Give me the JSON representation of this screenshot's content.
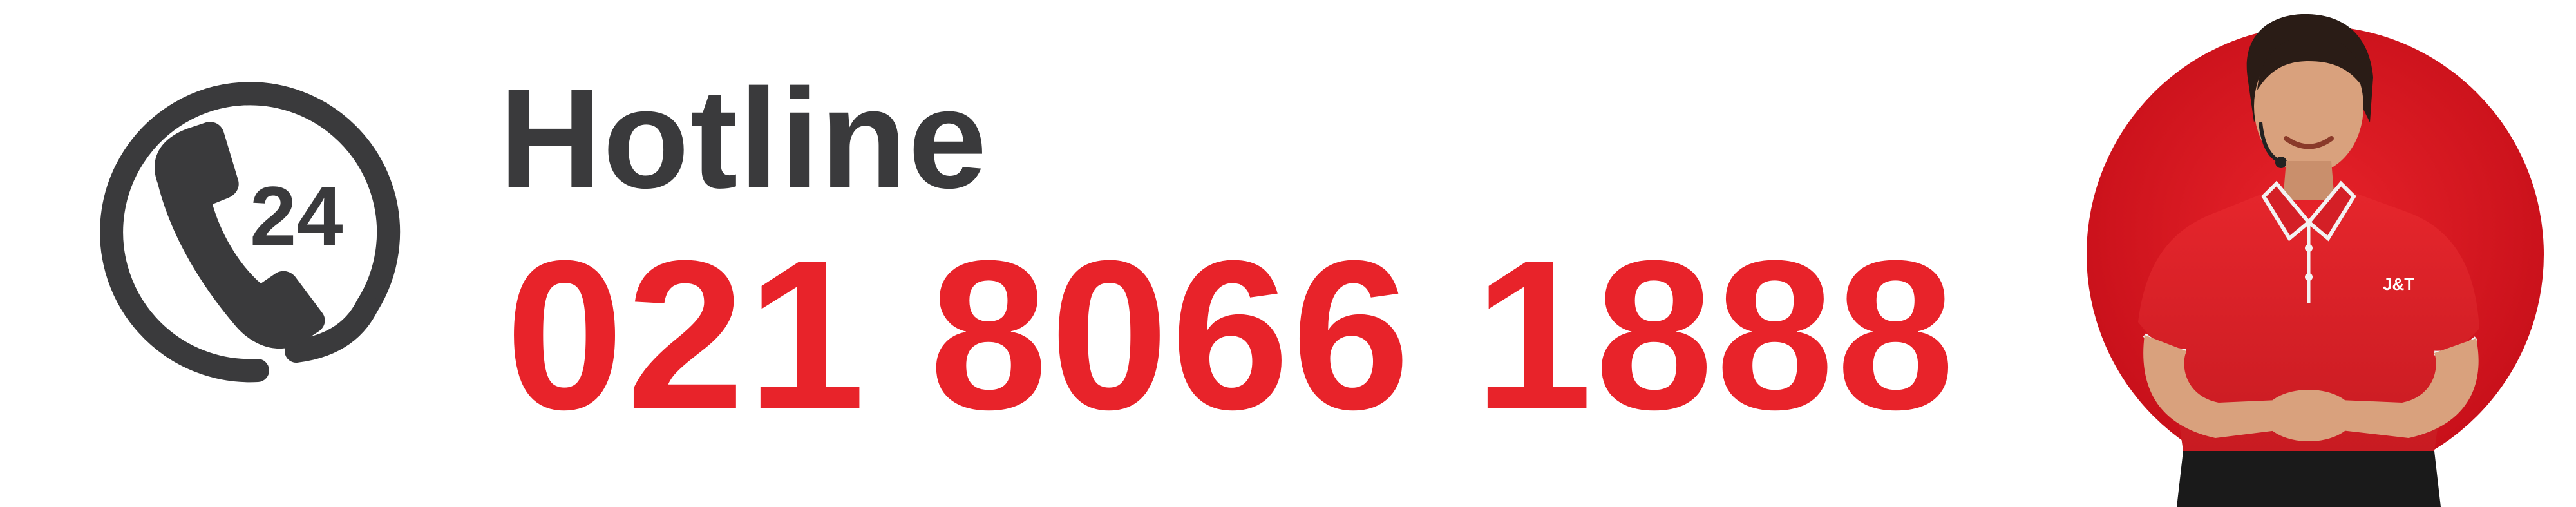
{
  "hotline": {
    "label": "Hotline",
    "number": "021 8066 1888",
    "icon_badge": "24",
    "icon": "phone-24-icon"
  },
  "agent": {
    "shirt_logo": "J&T"
  },
  "colors": {
    "accent": "#e8232a",
    "text_dark": "#3a3a3c",
    "background": "#ffffff"
  }
}
